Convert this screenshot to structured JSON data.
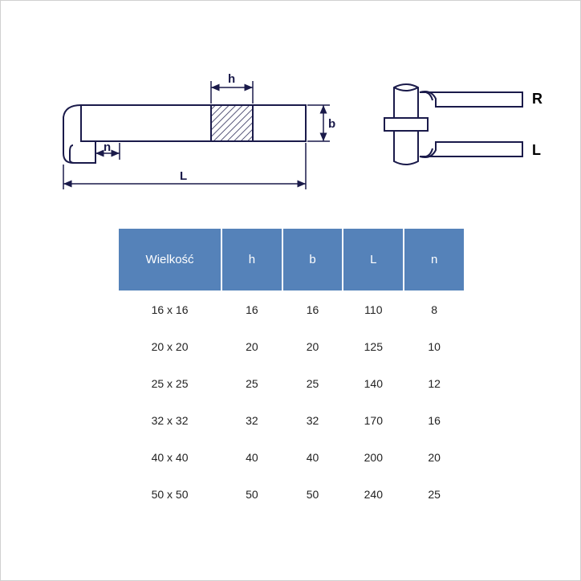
{
  "diagram": {
    "labels": {
      "h": "h",
      "b": "b",
      "n": "n",
      "L": "L",
      "R": "R",
      "Lside": "L"
    },
    "colors": {
      "stroke": "#1a1a4a",
      "hatch": "#1a1a4a",
      "fill": "#ffffff",
      "header_bg": "#5582b9",
      "header_fg": "#ffffff"
    },
    "stroke_width": 2
  },
  "table": {
    "columns": [
      "Wielkość",
      "h",
      "b",
      "L",
      "n"
    ],
    "rows": [
      [
        "16 x 16",
        "16",
        "16",
        "110",
        "8"
      ],
      [
        "20 x 20",
        "20",
        "20",
        "125",
        "10"
      ],
      [
        "25 x 25",
        "25",
        "25",
        "140",
        "12"
      ],
      [
        "32 x 32",
        "32",
        "32",
        "170",
        "16"
      ],
      [
        "40 x 40",
        "40",
        "40",
        "200",
        "20"
      ],
      [
        "50 x 50",
        "50",
        "50",
        "240",
        "25"
      ]
    ]
  }
}
